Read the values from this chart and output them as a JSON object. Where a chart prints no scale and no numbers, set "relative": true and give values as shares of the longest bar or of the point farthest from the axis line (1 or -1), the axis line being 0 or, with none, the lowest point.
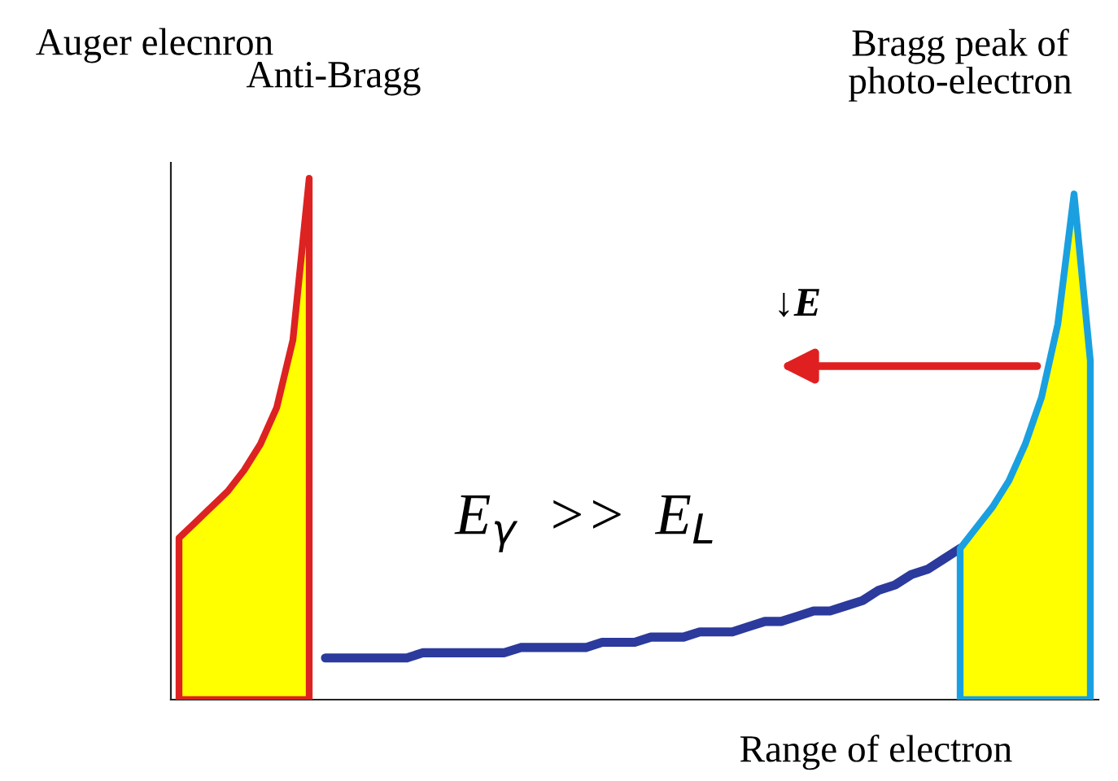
{
  "chart_data": {
    "type": "area",
    "relative": true,
    "xlabel": "Range of electron",
    "categories": [
      null,
      null,
      null,
      null,
      null,
      null,
      null,
      null,
      null,
      null,
      null,
      null,
      null,
      null,
      null,
      null,
      null,
      null,
      null,
      null,
      null,
      null,
      null,
      null,
      null,
      null,
      null,
      null,
      null,
      null,
      null,
      null,
      null,
      null,
      null,
      null,
      null,
      null,
      null,
      null,
      null,
      null,
      null,
      null,
      null,
      null,
      null,
      null,
      null,
      null,
      null,
      null,
      null,
      null,
      null,
      null,
      null
    ],
    "series": [
      {
        "color": "#ffff00",
        "values": [
          0.31,
          0.34,
          0.37,
          0.4,
          0.44,
          0.49,
          0.56,
          0.69,
          1.0,
          null,
          null,
          null,
          null,
          null,
          null,
          null,
          null,
          null,
          null,
          null,
          null,
          null,
          null,
          null,
          null,
          null,
          null,
          null,
          null,
          null,
          null,
          null,
          null,
          null,
          null,
          null,
          null,
          null,
          null,
          null,
          null,
          null,
          null,
          null,
          null,
          null,
          null,
          null,
          null,
          null,
          null,
          null,
          null,
          null,
          null,
          null,
          null
        ]
      },
      {
        "type": "line",
        "color": "#2b3a9c",
        "values": [
          null,
          null,
          null,
          null,
          null,
          null,
          null,
          null,
          null,
          0.08,
          0.08,
          0.08,
          0.08,
          0.08,
          0.08,
          0.09,
          0.09,
          0.09,
          0.09,
          0.09,
          0.09,
          0.1,
          0.1,
          0.1,
          0.1,
          0.1,
          0.11,
          0.11,
          0.11,
          0.12,
          0.12,
          0.12,
          0.13,
          0.13,
          0.13,
          0.14,
          0.15,
          0.15,
          0.16,
          0.17,
          0.17,
          0.18,
          0.19,
          0.21,
          0.22,
          0.24,
          0.25,
          0.27,
          0.29,
          null,
          null,
          null,
          null,
          null,
          null,
          null,
          null
        ]
      },
      {
        "color": "#ffff00",
        "values": [
          null,
          null,
          null,
          null,
          null,
          null,
          null,
          null,
          null,
          null,
          null,
          null,
          null,
          null,
          null,
          null,
          null,
          null,
          null,
          null,
          null,
          null,
          null,
          null,
          null,
          null,
          null,
          null,
          null,
          null,
          null,
          null,
          null,
          null,
          null,
          null,
          null,
          null,
          null,
          null,
          null,
          null,
          null,
          null,
          null,
          null,
          null,
          null,
          0.29,
          0.33,
          0.37,
          0.42,
          0.49,
          0.58,
          0.72,
          0.97,
          0.65
        ]
      }
    ],
    "annotations": [
      "Auger elecnron",
      "Anti-Bragg",
      "Bragg peak of\nphoto-electron",
      "↓E",
      "E$_{γ}$  >>  E$_{L}$"
    ]
  }
}
